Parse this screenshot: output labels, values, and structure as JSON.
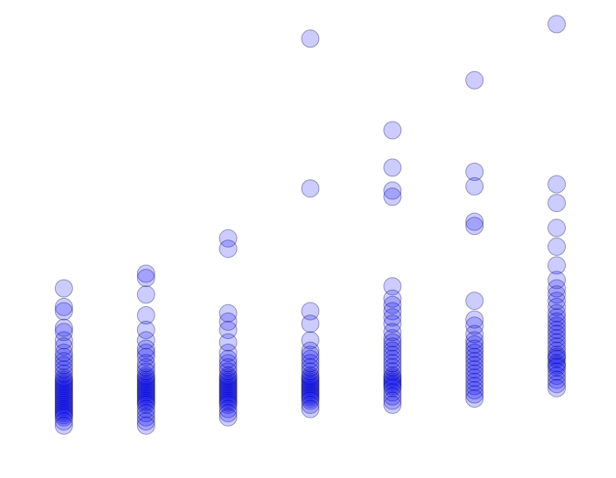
{
  "chart_data": {
    "type": "scatter",
    "title": "",
    "xlabel": "",
    "ylabel": "",
    "grid": false,
    "axes_visible": false,
    "xlim": [
      0.5,
      7.5
    ],
    "ylim": [
      -0.3,
      10.2
    ],
    "point_color": "#0000ff",
    "series": [
      {
        "x": 1,
        "values": [
          3.6,
          3.15,
          3.05,
          2.65,
          2.55,
          2.35,
          2.2,
          2.05,
          1.95,
          1.85,
          1.75,
          1.65,
          1.55,
          1.45,
          1.4,
          1.35,
          1.3,
          1.25,
          1.2,
          1.15,
          1.1,
          1.05,
          1.0,
          0.95,
          0.9,
          0.85,
          0.8,
          0.75,
          0.7,
          0.65,
          0.6,
          0.55,
          0.5,
          0.4,
          0.3
        ]
      },
      {
        "x": 2,
        "values": [
          3.95,
          3.85,
          3.45,
          2.95,
          2.6,
          2.35,
          2.15,
          2.05,
          1.95,
          1.8,
          1.7,
          1.6,
          1.5,
          1.45,
          1.4,
          1.35,
          1.3,
          1.25,
          1.2,
          1.15,
          1.1,
          1.05,
          1.0,
          0.95,
          0.9,
          0.85,
          0.8,
          0.7,
          0.6,
          0.5,
          0.4,
          0.3
        ]
      },
      {
        "x": 3,
        "values": [
          4.8,
          4.55,
          3.0,
          2.8,
          2.6,
          2.3,
          2.05,
          1.9,
          1.8,
          1.7,
          1.6,
          1.5,
          1.45,
          1.4,
          1.35,
          1.3,
          1.25,
          1.2,
          1.15,
          1.1,
          1.05,
          1.0,
          0.95,
          0.9,
          0.85,
          0.8,
          0.7,
          0.6,
          0.5
        ]
      },
      {
        "x": 4,
        "values": [
          9.6,
          6.0,
          3.05,
          2.75,
          2.35,
          2.1,
          2.0,
          1.9,
          1.8,
          1.7,
          1.6,
          1.5,
          1.45,
          1.4,
          1.35,
          1.3,
          1.25,
          1.2,
          1.15,
          1.1,
          1.05,
          1.0,
          0.95,
          0.9,
          0.8,
          0.7
        ]
      },
      {
        "x": 5,
        "values": [
          7.4,
          6.5,
          5.95,
          5.8,
          3.65,
          3.35,
          3.2,
          3.05,
          2.9,
          2.75,
          2.55,
          2.4,
          2.3,
          2.2,
          2.1,
          2.0,
          1.9,
          1.8,
          1.7,
          1.6,
          1.5,
          1.45,
          1.4,
          1.35,
          1.3,
          1.25,
          1.2,
          1.1,
          1.0,
          0.9,
          0.8
        ]
      },
      {
        "x": 6,
        "values": [
          8.6,
          6.4,
          6.05,
          5.2,
          5.1,
          3.3,
          2.85,
          2.7,
          2.5,
          2.35,
          2.25,
          2.15,
          2.05,
          1.95,
          1.85,
          1.75,
          1.65,
          1.55,
          1.45,
          1.35,
          1.25,
          1.15,
          1.05,
          0.95
        ]
      },
      {
        "x": 7,
        "values": [
          9.95,
          6.1,
          5.65,
          5.05,
          4.6,
          4.15,
          3.8,
          3.6,
          3.45,
          3.3,
          3.15,
          3.0,
          2.9,
          2.8,
          2.7,
          2.6,
          2.5,
          2.4,
          2.3,
          2.2,
          2.1,
          2.0,
          1.95,
          1.9,
          1.8,
          1.75,
          1.7,
          1.6,
          1.5,
          1.4,
          1.3,
          1.2
        ]
      }
    ]
  }
}
